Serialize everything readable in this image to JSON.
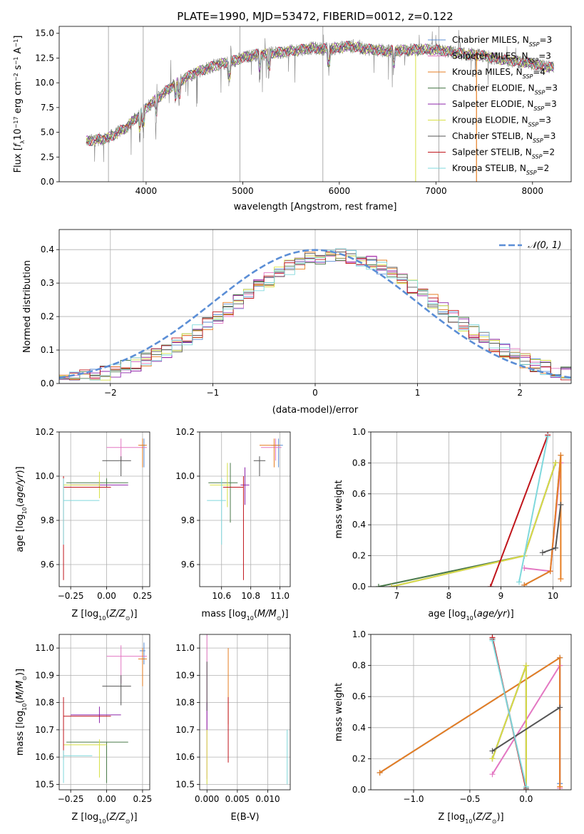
{
  "colors": {
    "Chabrier MILES": "#5b8ed6",
    "Salpeter MILES": "#e377c2",
    "Kroupa MILES": "#e67e22",
    "Chabrier ELODIE": "#4a7a4a",
    "Salpeter ELODIE": "#8e24aa",
    "Kroupa ELODIE": "#d7e043",
    "Chabrier STELIB": "#555555",
    "Salpeter STELIB": "#c0151b",
    "Kroupa STELIB": "#7fd8dc",
    "gaussian": "#5b8ed6",
    "data": "#808080",
    "grid": "#b0b0b0"
  },
  "chart_data": [
    {
      "id": "spectrum",
      "type": "line",
      "title": "PLATE=1990, MJD=53472, FIBERID=0012, z=0.122",
      "xlabel": "wavelength [Angstrom, rest frame]",
      "ylabel": "Flux [fλ10⁻¹⁷ erg cm⁻² s⁻¹ A⁻¹]",
      "xlim": [
        3100,
        8400
      ],
      "ylim": [
        0,
        15.7
      ],
      "xticks": [
        4000,
        5000,
        6000,
        7000,
        8000
      ],
      "xtick_labels": [
        "4000",
        "5000",
        "6000",
        "7000",
        "8000"
      ],
      "yticks": [
        0,
        2.5,
        5.0,
        7.5,
        10.0,
        12.5,
        15.0
      ],
      "ytick_labels": [
        "0.0",
        "2.5",
        "5.0",
        "7.5",
        "10.0",
        "12.5",
        "15.0"
      ],
      "grid": false,
      "legend": "right",
      "legend_entries": [
        "Chabrier MILES, N_SSP=3",
        "Salpeter MILES, N_SSP=3",
        "Kroupa MILES, N_SSP=4",
        "Chabrier ELODIE, N_SSP=3",
        "Salpeter ELODIE, N_SSP=3",
        "Kroupa ELODIE, N_SSP=3",
        "Chabrier STELIB, N_SSP=3",
        "Salpeter STELIB, N_SSP=2",
        "Kroupa STELIB, N_SSP=2"
      ],
      "continuum": {
        "x": [
          3380,
          3600,
          3800,
          3950,
          4100,
          4300,
          4500,
          4700,
          4900,
          5100,
          5300,
          5500,
          5700,
          5900,
          6100,
          6300,
          6500,
          6700,
          6900,
          7100,
          7300,
          7500,
          7700,
          7900,
          8100,
          8220
        ],
        "y": [
          4.1,
          4.4,
          5.5,
          7.0,
          8.3,
          9.9,
          11.0,
          11.7,
          12.2,
          12.8,
          13.0,
          13.2,
          13.5,
          13.4,
          13.7,
          13.4,
          13.2,
          13.3,
          13.4,
          13.2,
          12.9,
          12.7,
          12.3,
          12.1,
          11.7,
          11.5
        ]
      },
      "absorption_lines": [
        3934,
        3969,
        4102,
        4304,
        4340,
        4861,
        5175,
        5270,
        5890,
        6563
      ]
    },
    {
      "id": "residuals",
      "type": "bar",
      "xlabel": "(data-model)/error",
      "ylabel": "Normed distribution",
      "xlim": [
        -2.5,
        2.5
      ],
      "ylim": [
        0,
        0.46
      ],
      "xticks": [
        -2,
        -1,
        0,
        1,
        2
      ],
      "xtick_labels": [
        "−2",
        "−1",
        "0",
        "1",
        "2"
      ],
      "yticks": [
        0.0,
        0.1,
        0.2,
        0.3,
        0.4
      ],
      "ytick_labels": [
        "0.0",
        "0.1",
        "0.2",
        "0.3",
        "0.4"
      ],
      "grid": true,
      "legend": "top-right",
      "gaussian_label": "𝒩(0, 1)",
      "bin_width": 0.1,
      "bin_start": -2.5,
      "n_bins": 50,
      "shape": {
        "mu": 0.2,
        "sigma": 1.0
      }
    },
    {
      "id": "age-vs-Z",
      "type": "scatter",
      "xlabel": "Z [log10(Z/Z☉)]",
      "ylabel": "age [log10(age/yr)]",
      "xlim": [
        -0.33,
        0.3
      ],
      "ylim": [
        9.5,
        10.2
      ],
      "xticks": [
        -0.25,
        0.0,
        0.25
      ],
      "xtick_labels": [
        "−0.25",
        "0.00",
        "0.25"
      ],
      "yticks": [
        9.6,
        9.8,
        10.0,
        10.2
      ],
      "ytick_labels": [
        "9.6",
        "9.8",
        "10.0",
        "10.2"
      ],
      "grid": true,
      "points": [
        {
          "model": "Chabrier MILES",
          "x": 0.26,
          "xerr": [
            0.03,
            0.01
          ],
          "y": 10.14,
          "yerr": [
            0.1,
            0.03
          ]
        },
        {
          "model": "Salpeter MILES",
          "x": 0.1,
          "xerr": [
            0.1,
            0.18
          ],
          "y": 10.13,
          "yerr": [
            0.06,
            0.04
          ]
        },
        {
          "model": "Kroupa MILES",
          "x": 0.25,
          "xerr": [
            0.03,
            0.03
          ],
          "y": 10.14,
          "yerr": [
            0.1,
            0.03
          ]
        },
        {
          "model": "Chabrier ELODIE",
          "x": 0.0,
          "xerr": [
            0.28,
            0.15
          ],
          "y": 9.97,
          "yerr": [
            0.02,
            0.02
          ]
        },
        {
          "model": "Salpeter ELODIE",
          "x": -0.05,
          "xerr": [
            0.2,
            0.2
          ],
          "y": 9.96,
          "yerr": [
            0.02,
            0.02
          ]
        },
        {
          "model": "Kroupa ELODIE",
          "x": -0.05,
          "xerr": [
            0.25,
            0.0
          ],
          "y": 9.96,
          "yerr": [
            0.06,
            0.06
          ]
        },
        {
          "model": "Chabrier STELIB",
          "x": 0.1,
          "xerr": [
            0.13,
            0.07
          ],
          "y": 10.07,
          "yerr": [
            0.07,
            0.02
          ]
        },
        {
          "model": "Salpeter STELIB",
          "x": -0.3,
          "xerr": [
            0.0,
            0.33
          ],
          "y": 9.95,
          "yerr": [
            0.42,
            0.05
          ]
        },
        {
          "model": "Kroupa STELIB",
          "x": -0.3,
          "xerr": [
            0.0,
            0.25
          ],
          "y": 9.89,
          "yerr": [
            0.2,
            0.1
          ]
        }
      ]
    },
    {
      "id": "age-vs-mass",
      "type": "scatter",
      "xlabel": "mass [log10(M/M☉)]",
      "ylabel": "",
      "xlim": [
        10.45,
        11.07
      ],
      "ylim": [
        9.5,
        10.2
      ],
      "xticks": [
        10.6,
        10.8,
        11.0
      ],
      "xtick_labels": [
        "10.6",
        "10.8",
        "11.0"
      ],
      "yticks": [
        9.6,
        9.8,
        10.0,
        10.2
      ],
      "ytick_labels": [
        "9.6",
        "9.8",
        "10.0",
        "10.2"
      ],
      "grid": true,
      "points": [
        {
          "model": "Chabrier MILES",
          "x": 10.99,
          "xerr": [
            0.05,
            0.03
          ],
          "y": 10.14,
          "yerr": [
            0.1,
            0.03
          ]
        },
        {
          "model": "Salpeter MILES",
          "x": 10.97,
          "xerr": [
            0.1,
            0.04
          ],
          "y": 10.13,
          "yerr": [
            0.06,
            0.04
          ]
        },
        {
          "model": "Kroupa MILES",
          "x": 10.96,
          "xerr": [
            0.1,
            0.04
          ],
          "y": 10.14,
          "yerr": [
            0.1,
            0.03
          ]
        },
        {
          "model": "Chabrier ELODIE",
          "x": 10.66,
          "xerr": [
            0.15,
            0.05
          ],
          "y": 9.97,
          "yerr": [
            0.18,
            0.09
          ]
        },
        {
          "model": "Salpeter ELODIE",
          "x": 10.76,
          "xerr": [
            0.03,
            0.03
          ],
          "y": 9.96,
          "yerr": [
            0.09,
            0.08
          ]
        },
        {
          "model": "Kroupa ELODIE",
          "x": 10.64,
          "xerr": [
            0.12,
            0.02
          ],
          "y": 9.96,
          "yerr": [
            0.1,
            0.1
          ]
        },
        {
          "model": "Chabrier STELIB",
          "x": 10.86,
          "xerr": [
            0.04,
            0.04
          ],
          "y": 10.07,
          "yerr": [
            0.07,
            0.02
          ]
        },
        {
          "model": "Salpeter STELIB",
          "x": 10.75,
          "xerr": [
            0.14,
            0.0
          ],
          "y": 9.95,
          "yerr": [
            0.42,
            0.05
          ]
        },
        {
          "model": "Kroupa STELIB",
          "x": 10.6,
          "xerr": [
            0.1,
            0.03
          ],
          "y": 9.89,
          "yerr": [
            0.2,
            0.1
          ]
        }
      ]
    },
    {
      "id": "mass-weight-vs-age",
      "type": "line",
      "xlabel": "age [log10(age/yr)]",
      "ylabel": "mass weight",
      "xlim": [
        6.5,
        10.35
      ],
      "ylim": [
        0,
        1.0
      ],
      "xticks": [
        7,
        8,
        9,
        10
      ],
      "xtick_labels": [
        "7",
        "8",
        "9",
        "10"
      ],
      "yticks": [
        0.0,
        0.2,
        0.4,
        0.6,
        0.8,
        1.0
      ],
      "ytick_labels": [
        "0.0",
        "0.2",
        "0.4",
        "0.6",
        "0.8",
        "1.0"
      ],
      "grid": true,
      "series": [
        {
          "model": "Chabrier MILES",
          "x": [
            9.45,
            9.95,
            10.15
          ],
          "y": [
            0.01,
            0.1,
            0.85
          ]
        },
        {
          "model": "Salpeter MILES",
          "x": [
            9.45,
            9.95,
            10.15
          ],
          "y": [
            0.12,
            0.1,
            0.8
          ]
        },
        {
          "model": "Kroupa MILES",
          "x": [
            9.45,
            9.95,
            10.15,
            10.15
          ],
          "y": [
            0.01,
            0.1,
            0.85,
            0.05
          ]
        },
        {
          "model": "Chabrier ELODIE",
          "x": [
            6.65,
            9.45,
            10.05
          ],
          "y": [
            0.0,
            0.2,
            0.8
          ]
        },
        {
          "model": "Salpeter ELODIE",
          "x": [
            6.9,
            9.45,
            10.05
          ],
          "y": [
            0.0,
            0.2,
            0.8
          ]
        },
        {
          "model": "Kroupa ELODIE",
          "x": [
            6.9,
            9.45,
            10.05
          ],
          "y": [
            0.0,
            0.2,
            0.8
          ]
        },
        {
          "model": "Chabrier STELIB",
          "x": [
            9.8,
            10.05,
            10.15
          ],
          "y": [
            0.22,
            0.25,
            0.53
          ]
        },
        {
          "model": "Salpeter STELIB",
          "x": [
            8.8,
            9.9
          ],
          "y": [
            0.0,
            0.98
          ]
        },
        {
          "model": "Kroupa STELIB",
          "x": [
            9.35,
            9.9
          ],
          "y": [
            0.03,
            0.97
          ]
        }
      ]
    },
    {
      "id": "mass-vs-Z",
      "type": "scatter",
      "xlabel": "Z [log10(Z/Z☉)]",
      "ylabel": "mass [log10(M/M☉)]",
      "xlim": [
        -0.33,
        0.3
      ],
      "ylim": [
        10.48,
        11.05
      ],
      "xticks": [
        -0.25,
        0.0,
        0.25
      ],
      "xtick_labels": [
        "−0.25",
        "0.00",
        "0.25"
      ],
      "yticks": [
        10.5,
        10.6,
        10.7,
        10.8,
        10.9,
        11.0
      ],
      "ytick_labels": [
        "10.5",
        "10.6",
        "10.7",
        "10.8",
        "10.9",
        "11.0"
      ],
      "grid": true,
      "points": [
        {
          "model": "Chabrier MILES",
          "x": 0.26,
          "xerr": [
            0.03,
            0.01
          ],
          "y": 10.99,
          "yerr": [
            0.05,
            0.03
          ]
        },
        {
          "model": "Salpeter MILES",
          "x": 0.1,
          "xerr": [
            0.1,
            0.18
          ],
          "y": 10.97,
          "yerr": [
            0.1,
            0.04
          ]
        },
        {
          "model": "Kroupa MILES",
          "x": 0.25,
          "xerr": [
            0.03,
            0.03
          ],
          "y": 10.96,
          "yerr": [
            0.1,
            0.04
          ]
        },
        {
          "model": "Chabrier ELODIE",
          "x": 0.0,
          "xerr": [
            0.28,
            0.15
          ],
          "y": 10.655,
          "yerr": [
            0.15,
            0.0
          ]
        },
        {
          "model": "Salpeter ELODIE",
          "x": -0.05,
          "xerr": [
            0.2,
            0.15
          ],
          "y": 10.755,
          "yerr": [
            0.03,
            0.03
          ]
        },
        {
          "model": "Kroupa ELODIE",
          "x": -0.05,
          "xerr": [
            0.25,
            0.05
          ],
          "y": 10.645,
          "yerr": [
            0.12,
            0.02
          ]
        },
        {
          "model": "Chabrier STELIB",
          "x": 0.1,
          "xerr": [
            0.13,
            0.07
          ],
          "y": 10.86,
          "yerr": [
            0.07,
            0.04
          ]
        },
        {
          "model": "Salpeter STELIB",
          "x": -0.3,
          "xerr": [
            0.0,
            0.33
          ],
          "y": 10.75,
          "yerr": [
            0.16,
            0.07
          ]
        },
        {
          "model": "Kroupa STELIB",
          "x": -0.3,
          "xerr": [
            0.0,
            0.2
          ],
          "y": 10.605,
          "yerr": [
            0.1,
            0.02
          ]
        }
      ]
    },
    {
      "id": "mass-vs-EBV",
      "type": "scatter",
      "xlabel": "E(B-V)",
      "ylabel": "",
      "xlim": [
        -0.0012,
        0.0137
      ],
      "ylim": [
        10.48,
        11.05
      ],
      "xticks": [
        0.0,
        0.005,
        0.01
      ],
      "xtick_labels": [
        "0.000",
        "0.005",
        "0.010"
      ],
      "yticks": [
        10.5,
        10.6,
        10.7,
        10.8,
        10.9,
        11.0
      ],
      "ytick_labels": [
        "10.5",
        "10.6",
        "10.7",
        "10.8",
        "10.9",
        "11.0"
      ],
      "grid": true,
      "points": [
        {
          "model": "Salpeter MILES",
          "x": 0.0,
          "xerr": [
            0,
            0
          ],
          "y": 10.8,
          "yerr": [
            0.28,
            0.33
          ]
        },
        {
          "model": "Salpeter ELODIE",
          "x": 0.0,
          "xerr": [
            0,
            0
          ],
          "y": 10.75,
          "yerr": [
            0.05,
            0.05
          ]
        },
        {
          "model": "Kroupa ELODIE",
          "x": 0.0,
          "xerr": [
            0,
            0
          ],
          "y": 10.6,
          "yerr": [
            0.1,
            0.1
          ]
        },
        {
          "model": "Chabrier STELIB",
          "x": 0.0,
          "xerr": [
            0,
            0
          ],
          "y": 10.85,
          "yerr": [
            0.08,
            0.1
          ]
        },
        {
          "model": "Kroupa MILES",
          "x": 0.0035,
          "xerr": [
            0,
            0
          ],
          "y": 10.82,
          "yerr": [
            0.1,
            0.18
          ]
        },
        {
          "model": "Salpeter STELIB",
          "x": 0.0035,
          "xerr": [
            0,
            0
          ],
          "y": 10.72,
          "yerr": [
            0.14,
            0.1
          ]
        },
        {
          "model": "Kroupa STELIB",
          "x": 0.0132,
          "xerr": [
            0,
            0
          ],
          "y": 10.6,
          "yerr": [
            0.1,
            0.1
          ]
        }
      ]
    },
    {
      "id": "mass-weight-vs-Z",
      "type": "line",
      "xlabel": "Z [log10(Z/Z☉)]",
      "ylabel": "mass weight",
      "xlim": [
        -1.38,
        0.4
      ],
      "ylim": [
        0,
        1.0
      ],
      "xticks": [
        -1.0,
        -0.5,
        0.0
      ],
      "xtick_labels": [
        "−1.0",
        "−0.5",
        "0.0"
      ],
      "yticks": [
        0.0,
        0.2,
        0.4,
        0.6,
        0.8,
        1.0
      ],
      "ytick_labels": [
        "0.0",
        "0.2",
        "0.4",
        "0.6",
        "0.8",
        "1.0"
      ],
      "grid": true,
      "series": [
        {
          "model": "Chabrier MILES",
          "x": [
            -1.3,
            0.3,
            0.3
          ],
          "y": [
            0.11,
            0.85,
            0.04
          ]
        },
        {
          "model": "Salpeter MILES",
          "x": [
            -0.3,
            0.3,
            0.3
          ],
          "y": [
            0.1,
            0.8,
            0.01
          ]
        },
        {
          "model": "Kroupa MILES",
          "x": [
            -1.3,
            0.3,
            0.3
          ],
          "y": [
            0.11,
            0.85,
            0.02
          ]
        },
        {
          "model": "Chabrier ELODIE",
          "x": [
            -0.3,
            0.0,
            0.0
          ],
          "y": [
            0.2,
            0.8,
            0.0
          ]
        },
        {
          "model": "Salpeter ELODIE",
          "x": [
            -0.3,
            0.0,
            0.0
          ],
          "y": [
            0.2,
            0.8,
            0.0
          ]
        },
        {
          "model": "Kroupa ELODIE",
          "x": [
            -0.3,
            0.0,
            0.0
          ],
          "y": [
            0.2,
            0.8,
            0.0
          ]
        },
        {
          "model": "Chabrier STELIB",
          "x": [
            -0.3,
            0.3
          ],
          "y": [
            0.25,
            0.53
          ]
        },
        {
          "model": "Chabrier STELIB",
          "x": [
            -0.3,
            0.0
          ],
          "y": [
            0.97,
            0.01
          ]
        },
        {
          "model": "Salpeter STELIB",
          "x": [
            -0.3,
            0.0
          ],
          "y": [
            0.98,
            0.0
          ]
        },
        {
          "model": "Kroupa STELIB",
          "x": [
            -0.3,
            0.0
          ],
          "y": [
            0.96,
            0.02
          ]
        }
      ]
    }
  ]
}
